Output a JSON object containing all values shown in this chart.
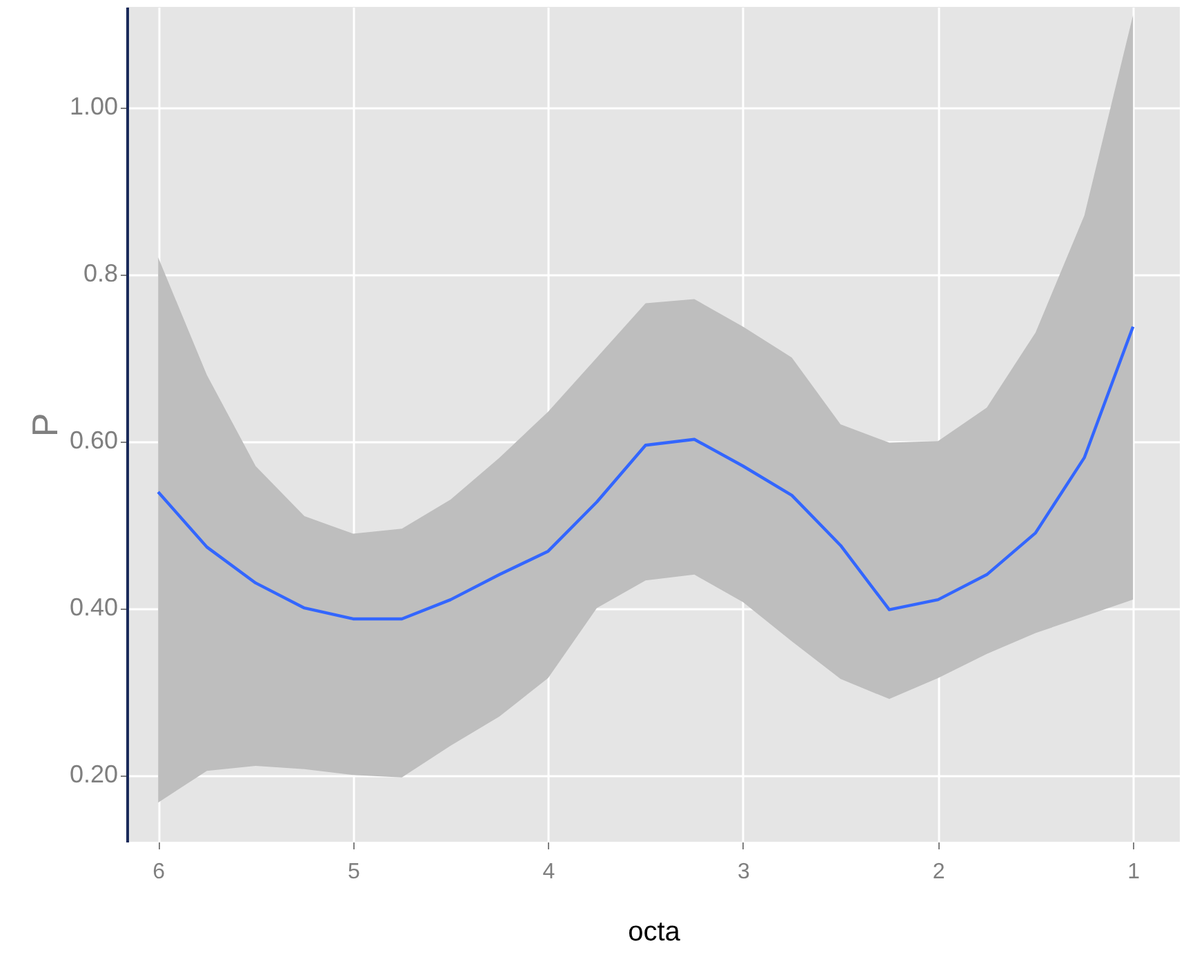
{
  "chart_data": {
    "type": "line",
    "xlabel": "octa",
    "ylabel": "P",
    "x": [
      6,
      5.75,
      5.5,
      5.25,
      5,
      4.75,
      4.5,
      4.25,
      4,
      3.75,
      3.5,
      3.25,
      3,
      2.75,
      2.5,
      2.25,
      2,
      1.75,
      1.5,
      1.25,
      1
    ],
    "series": [
      {
        "color": "#3366ff",
        "values": [
          0.539,
          0.473,
          0.43,
          0.4,
          0.387,
          0.387,
          0.41,
          0.44,
          0.468,
          0.527,
          0.595,
          0.602,
          0.57,
          0.535,
          0.475,
          0.398,
          0.41,
          0.44,
          0.49,
          0.58,
          0.737
        ],
        "lower": [
          0.167,
          0.205,
          0.211,
          0.207,
          0.2,
          0.197,
          0.235,
          0.27,
          0.316,
          0.4,
          0.433,
          0.44,
          0.407,
          0.36,
          0.315,
          0.291,
          0.316,
          0.345,
          0.37,
          0.39,
          0.41
        ],
        "upper": [
          0.82,
          0.679,
          0.57,
          0.51,
          0.489,
          0.495,
          0.53,
          0.58,
          0.635,
          0.7,
          0.765,
          0.77,
          0.737,
          0.7,
          0.62,
          0.598,
          0.6,
          0.64,
          0.73,
          0.87,
          1.11
        ]
      }
    ],
    "xlim": [
      6.16,
      0.76
    ],
    "xticks": [
      6,
      5,
      4,
      3,
      2,
      1
    ],
    "ylim": [
      0.12,
      1.12
    ],
    "yticks": [
      {
        "value": 0.2,
        "label": "0.20"
      },
      {
        "value": 0.4,
        "label": "0.40"
      },
      {
        "value": 0.6,
        "label": "0.60"
      },
      {
        "value": 0.8,
        "label": "0.8"
      },
      {
        "value": 1.0,
        "label": "1.00"
      }
    ],
    "grid": true,
    "marker": "none",
    "line_style": "solid"
  }
}
